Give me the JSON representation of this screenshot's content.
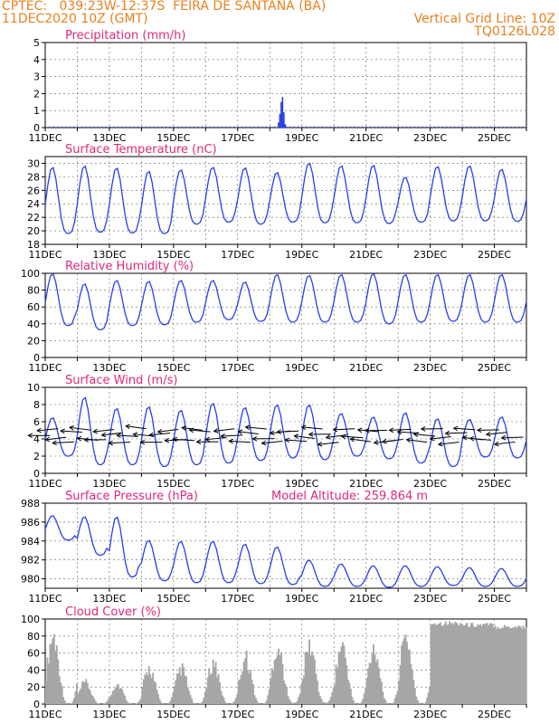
{
  "header": {
    "line1_left": "CPTEC:   039:23W-12:37S  FEIRA DE SANTANA (BA)",
    "line2_left": "11DEC2020 10Z (GMT)",
    "line2_right": "Vertical Grid Line: 10Z",
    "line3_right": "TQ0126L028"
  },
  "colors": {
    "header": "#e8801f",
    "title": "#e0287c",
    "series": "#2b3fe8",
    "wind_arrow": "#000000",
    "cloud": "#a6a6a6"
  },
  "x_axis": {
    "ticks": [
      "11DEC",
      "13DEC",
      "15DEC",
      "17DEC",
      "19DEC",
      "21DEC",
      "23DEC",
      "25DEC"
    ],
    "start": "11DEC2020 10Z",
    "end": "26DEC2020 10Z"
  },
  "model_altitude_label": "Model Altitude: 259.864 m",
  "chart_data": [
    {
      "id": "precip",
      "type": "bar",
      "title": "Precipitation (mm/h)",
      "ylim": [
        0,
        5
      ],
      "yticks": [
        0,
        1,
        2,
        3,
        4,
        5
      ],
      "x": [
        "18DEC 16Z",
        "18DEC 17Z",
        "18DEC 18Z",
        "18DEC 19Z",
        "18DEC 20Z",
        "18DEC 21Z"
      ],
      "values": [
        0.3,
        0.8,
        1.5,
        1.8,
        0.9,
        0.2
      ]
    },
    {
      "id": "temp",
      "type": "line",
      "title": "Surface Temperature (nC)",
      "ylim": [
        18,
        31
      ],
      "yticks": [
        18,
        20,
        22,
        24,
        26,
        28,
        30
      ],
      "daily_max": [
        29.5,
        29.7,
        29.4,
        28.9,
        29.1,
        29.5,
        29.4,
        28.7,
        30.1,
        29.7,
        29.8,
        28.0,
        29.6,
        29.7,
        29.2
      ],
      "daily_min": [
        19.6,
        19.8,
        19.7,
        19.6,
        21.0,
        21.3,
        21.0,
        21.3,
        21.2,
        21.2,
        21.1,
        21.3,
        21.5,
        21.5,
        21.4
      ]
    },
    {
      "id": "rh",
      "type": "line",
      "title": "Relative Humidity (%)",
      "ylim": [
        0,
        100
      ],
      "yticks": [
        0,
        20,
        40,
        60,
        80,
        100
      ],
      "daily_max": [
        100,
        88,
        92,
        91,
        92,
        92,
        90,
        99,
        98,
        99,
        100,
        99,
        99,
        99,
        99
      ],
      "daily_min": [
        38,
        33,
        38,
        39,
        42,
        45,
        43,
        42,
        42,
        42,
        40,
        42,
        43,
        42,
        42
      ]
    },
    {
      "id": "wind",
      "type": "line",
      "title": "Surface Wind (m/s)",
      "ylim": [
        0,
        10
      ],
      "yticks": [
        0,
        2,
        4,
        6,
        8,
        10
      ],
      "daily_max": [
        6.5,
        8.9,
        7.6,
        7.8,
        7.4,
        8.2,
        7.7,
        8.0,
        8.0,
        7.0,
        6.6,
        7.1,
        6.4,
        6.3,
        6.6
      ],
      "daily_min": [
        2.0,
        1.0,
        1.0,
        0.8,
        1.0,
        1.2,
        1.5,
        1.8,
        1.6,
        2.0,
        1.7,
        1.2,
        0.8,
        1.9,
        1.8
      ]
    },
    {
      "id": "pres",
      "type": "line",
      "title": "Surface Pressure (hPa)",
      "ylim": [
        979,
        988
      ],
      "yticks": [
        980,
        982,
        984,
        986,
        988
      ],
      "daily_max": [
        986.7,
        986.6,
        986.6,
        984.1,
        984.0,
        984.0,
        983.7,
        983.4,
        982.0,
        981.6,
        981.4,
        981.4,
        981.3,
        981.2,
        981.1
      ],
      "daily_min": [
        984.1,
        982.5,
        980.2,
        979.8,
        979.6,
        979.6,
        979.5,
        979.4,
        979.2,
        979.2,
        979.1,
        979.2,
        979.3,
        979.2,
        979.2
      ]
    },
    {
      "id": "cloud",
      "type": "bar",
      "title": "Cloud Cover (%)",
      "ylim": [
        0,
        100
      ],
      "yticks": [
        0,
        20,
        40,
        60,
        80,
        100
      ],
      "daily_max": [
        96,
        30,
        28,
        50,
        50,
        58,
        66,
        80,
        82,
        82,
        80,
        94,
        98,
        96,
        94
      ],
      "daily_min": [
        0,
        0,
        0,
        0,
        0,
        0,
        0,
        2,
        2,
        0,
        0,
        0,
        92,
        90,
        88
      ]
    }
  ]
}
